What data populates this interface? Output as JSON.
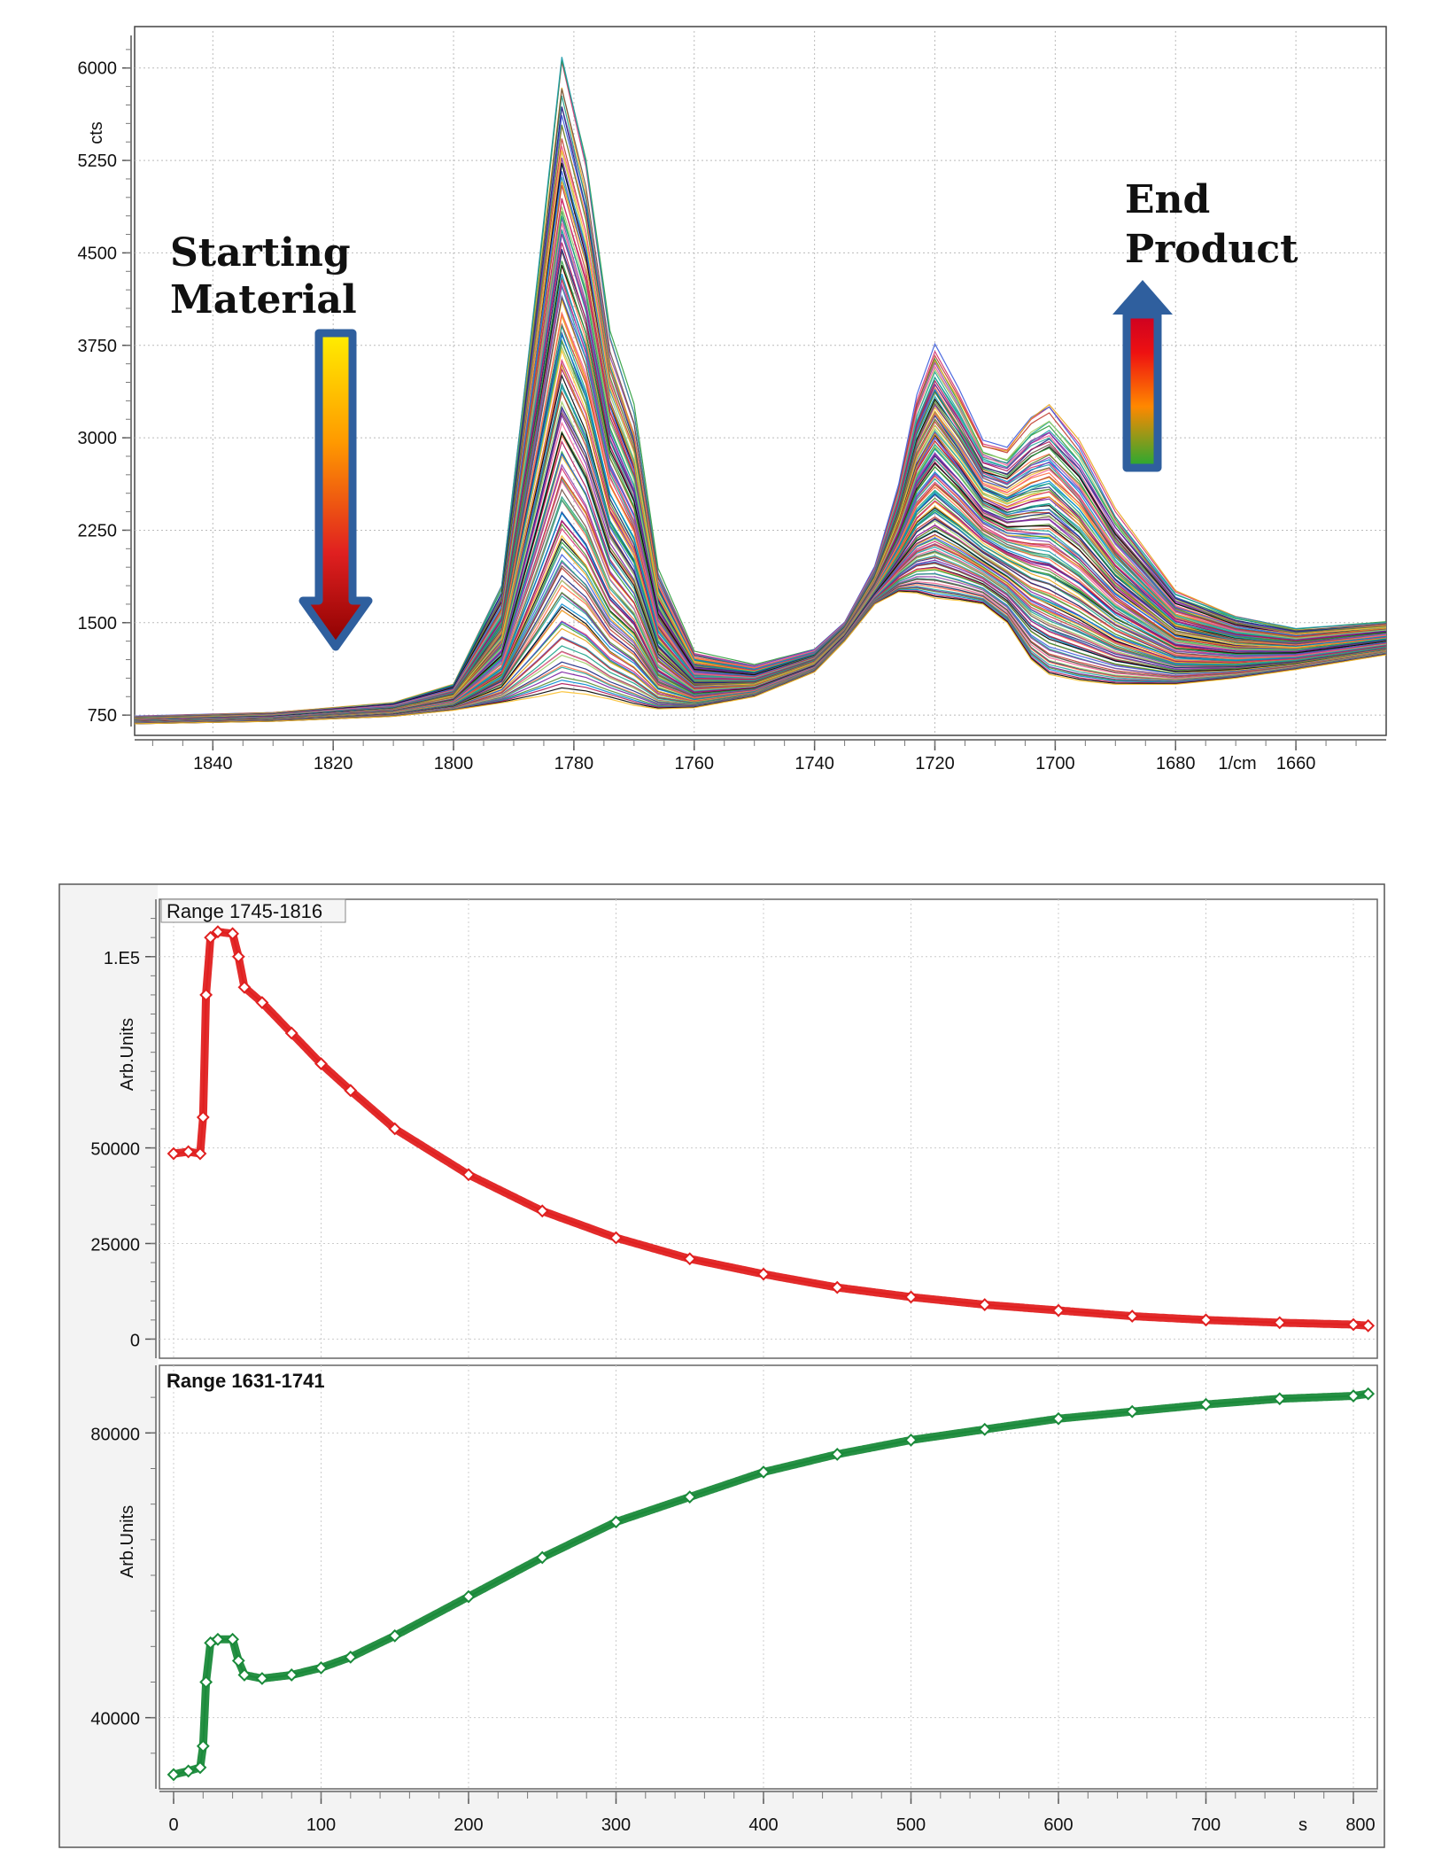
{
  "chart_data": [
    {
      "type": "line",
      "title": "",
      "xlabel": "1/cm",
      "ylabel": "cts",
      "xlim": [
        1853,
        1645
      ],
      "ylim": [
        600,
        6300
      ],
      "x_ticks": [
        1840,
        1820,
        1800,
        1780,
        1760,
        1740,
        1720,
        1700,
        1680,
        1660
      ],
      "x_tick_labels": [
        "1840",
        "1820",
        "1800",
        "1780",
        "1760",
        "1740",
        "1720",
        "1700",
        "1680",
        "1660"
      ],
      "y_ticks": [
        750,
        1500,
        2250,
        3000,
        3750,
        4500,
        5250,
        6000
      ],
      "y_tick_labels": [
        "750",
        "1500",
        "2250",
        "3000",
        "3750",
        "4500",
        "5250",
        "6000"
      ],
      "series_count_note": "",
      "envelope": {
        "x": [
          1853,
          1830,
          1810,
          1800,
          1792,
          1786,
          1782,
          1778,
          1774,
          1770,
          1766,
          1760,
          1750,
          1740,
          1735,
          1730,
          1726,
          1723,
          1720,
          1716,
          1712,
          1708,
          1704,
          1701,
          1696,
          1690,
          1680,
          1670,
          1660,
          1645
        ],
        "start": [
          740,
          770,
          850,
          1000,
          1800,
          4300,
          6050,
          5200,
          3800,
          3200,
          1900,
          1250,
          1150,
          1280,
          1500,
          1950,
          2600,
          3300,
          3700,
          3350,
          2950,
          2900,
          3150,
          3250,
          2950,
          2400,
          1750,
          1550,
          1450,
          1500
        ],
        "end": [
          680,
          700,
          740,
          790,
          850,
          900,
          940,
          920,
          880,
          830,
          800,
          810,
          900,
          1100,
          1350,
          1650,
          1750,
          1740,
          1700,
          1680,
          1650,
          1500,
          1200,
          1080,
          1030,
          1000,
          1000,
          1050,
          1120,
          1240
        ]
      },
      "annotations": {
        "starting_material": [
          "Starting",
          "Material"
        ],
        "end_product": [
          "End",
          "Product"
        ]
      }
    },
    {
      "type": "scatter",
      "title": "Range 1745-1816",
      "xlabel": "s",
      "ylabel": "Arb.Units",
      "color": "#e02020",
      "xlim": [
        -10,
        820
      ],
      "ylim": [
        -5000,
        115000
      ],
      "y_ticks": [
        0,
        25000,
        50000,
        100000
      ],
      "y_tick_labels": [
        "0",
        "25000",
        "50000",
        "1.E5"
      ],
      "x": [
        0,
        10,
        18,
        20,
        22,
        25,
        30,
        40,
        44,
        48,
        60,
        80,
        100,
        120,
        150,
        200,
        250,
        300,
        350,
        400,
        450,
        500,
        550,
        600,
        650,
        700,
        750,
        800,
        810
      ],
      "y": [
        48500,
        49000,
        48500,
        58000,
        90000,
        105000,
        106500,
        106000,
        100000,
        92000,
        88000,
        80000,
        72000,
        65000,
        55000,
        43000,
        33500,
        26500,
        21000,
        17000,
        13500,
        11000,
        9000,
        7500,
        6000,
        5000,
        4300,
        3800,
        3500
      ]
    },
    {
      "type": "scatter",
      "title": "Range 1631-1741",
      "xlabel": "s",
      "ylabel": "Arb.Units",
      "color": "#1a8a3a",
      "xlim": [
        -10,
        820
      ],
      "ylim": [
        30000,
        89500
      ],
      "y_ticks": [
        40000,
        80000
      ],
      "y_tick_labels": [
        "40000",
        "80000"
      ],
      "x": [
        0,
        10,
        18,
        20,
        22,
        25,
        30,
        40,
        44,
        48,
        60,
        80,
        100,
        120,
        150,
        200,
        250,
        300,
        350,
        400,
        450,
        500,
        550,
        600,
        650,
        700,
        750,
        800,
        810
      ],
      "y": [
        32000,
        32500,
        33000,
        36000,
        45000,
        50500,
        51000,
        51000,
        48000,
        46000,
        45500,
        46000,
        47000,
        48500,
        51500,
        57000,
        62500,
        67500,
        71000,
        74500,
        77000,
        79000,
        80500,
        82000,
        83000,
        84000,
        84800,
        85200,
        85500
      ]
    }
  ],
  "x_axis_bottom": {
    "ticks": [
      0,
      100,
      200,
      300,
      400,
      500,
      600,
      700,
      800
    ],
    "tick_labels": [
      "0",
      "100",
      "200",
      "300",
      "400",
      "500",
      "600",
      "700",
      "800"
    ],
    "unit_label": "s"
  },
  "colors": {
    "arrow_border": "#2f5f9e",
    "red_series": "#e02020",
    "green_series": "#1a8a3a"
  }
}
